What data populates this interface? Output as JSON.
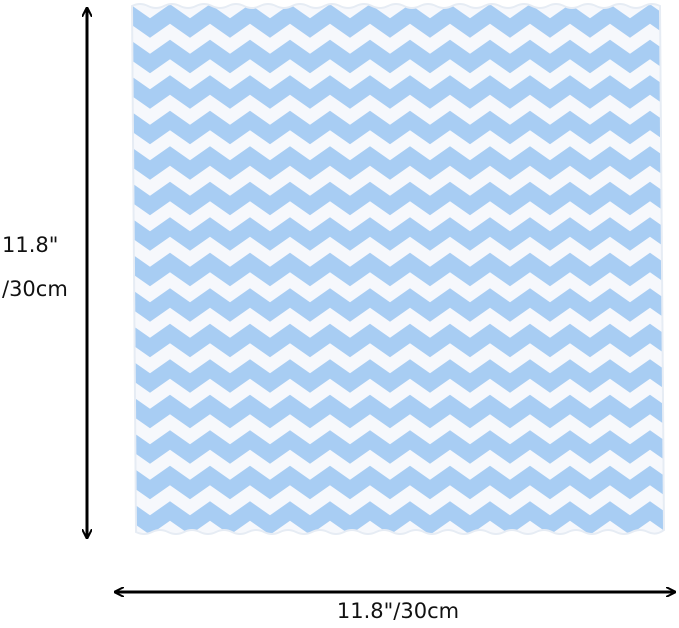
{
  "dimensions": {
    "height_label": [
      "11.8\"",
      "/30cm"
    ],
    "width_label": "11.8\"/30cm"
  }
}
